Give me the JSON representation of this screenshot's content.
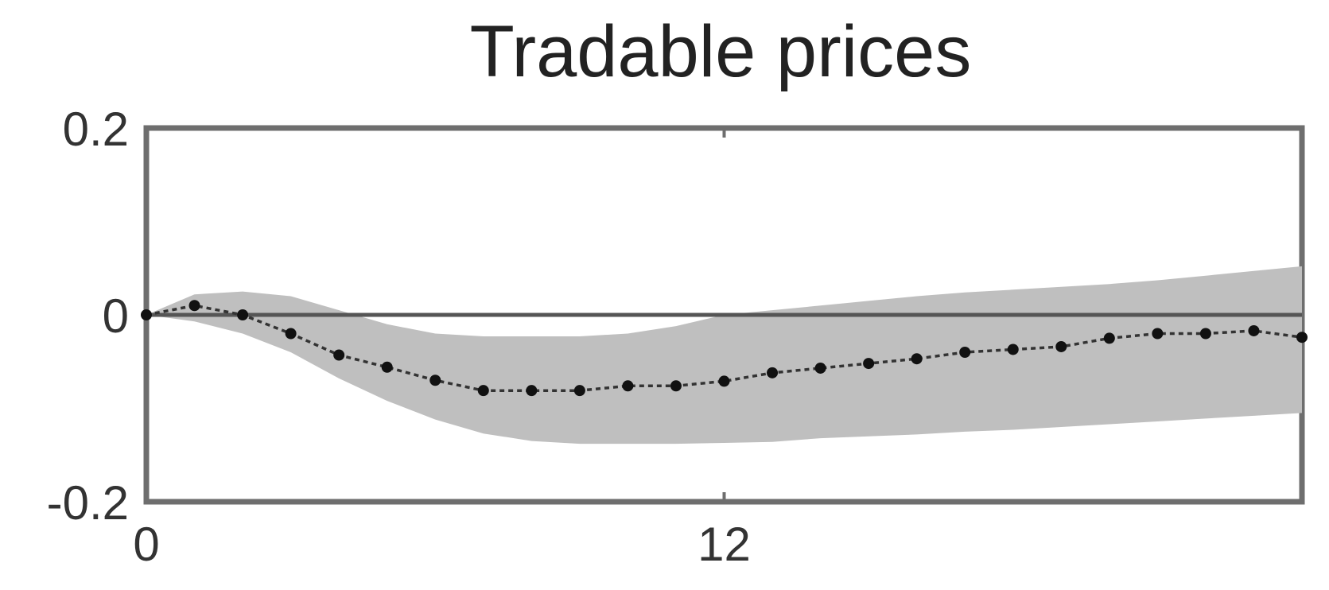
{
  "chart_data": {
    "type": "line",
    "title": "Tradable prices",
    "xlabel": "",
    "ylabel": "",
    "xlim": [
      0,
      24
    ],
    "ylim": [
      -0.2,
      0.2
    ],
    "x_ticks": [
      {
        "value": 0,
        "label": "0"
      },
      {
        "value": 12,
        "label": "12"
      }
    ],
    "y_ticks": [
      {
        "value": 0.2,
        "label": "0.2"
      },
      {
        "value": 0,
        "label": "0"
      },
      {
        "value": -0.2,
        "label": "-0.2"
      }
    ],
    "grid": false,
    "zero_line": true,
    "series": [
      {
        "role": "point-estimate",
        "style": "dotted line with markers",
        "x": [
          0,
          1,
          2,
          3,
          4,
          5,
          6,
          7,
          8,
          9,
          10,
          11,
          12,
          13,
          14,
          15,
          16,
          17,
          18,
          19,
          20,
          21,
          22,
          23,
          24
        ],
        "values": [
          0,
          0.01,
          0.0,
          -0.02,
          -0.043,
          -0.056,
          -0.07,
          -0.081,
          -0.081,
          -0.081,
          -0.076,
          -0.076,
          -0.071,
          -0.062,
          -0.057,
          -0.052,
          -0.047,
          -0.04,
          -0.037,
          -0.034,
          -0.025,
          -0.02,
          -0.02,
          -0.017,
          -0.024
        ]
      },
      {
        "role": "confidence-band",
        "style": "gray shaded area",
        "x": [
          0,
          1,
          2,
          3,
          4,
          5,
          6,
          7,
          8,
          9,
          10,
          11,
          12,
          13,
          14,
          15,
          16,
          17,
          18,
          19,
          20,
          21,
          22,
          23,
          24
        ],
        "upper": [
          0,
          0.022,
          0.025,
          0.02,
          0.005,
          -0.01,
          -0.02,
          -0.023,
          -0.023,
          -0.023,
          -0.02,
          -0.012,
          0.0,
          0.005,
          0.01,
          0.015,
          0.02,
          0.024,
          0.027,
          0.03,
          0.033,
          0.037,
          0.042,
          0.047,
          0.052
        ],
        "lower": [
          0,
          -0.007,
          -0.02,
          -0.04,
          -0.068,
          -0.092,
          -0.112,
          -0.127,
          -0.135,
          -0.138,
          -0.138,
          -0.138,
          -0.137,
          -0.136,
          -0.132,
          -0.13,
          -0.128,
          -0.125,
          -0.123,
          -0.12,
          -0.117,
          -0.114,
          -0.111,
          -0.108,
          -0.105
        ]
      }
    ]
  },
  "colors": {
    "band": "#bfbfbf",
    "line": "#333333",
    "marker": "#111111",
    "frame": "#6e6e6e",
    "zero_line": "#555555",
    "text": "#222222"
  }
}
